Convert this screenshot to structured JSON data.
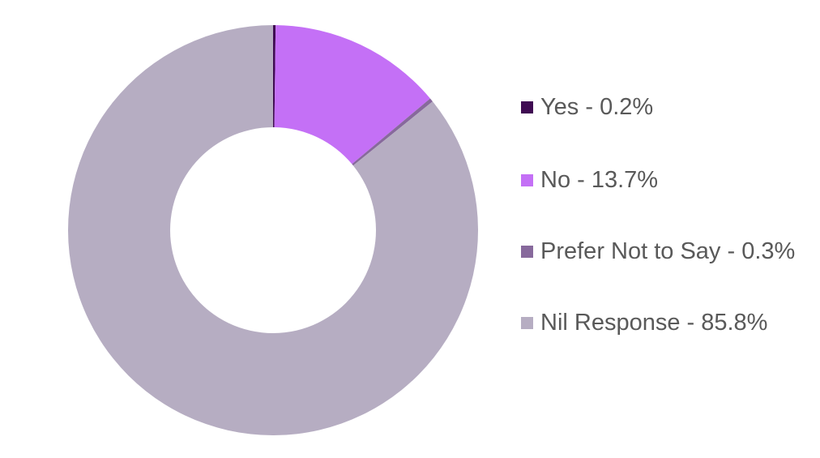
{
  "chart_data": {
    "type": "donut",
    "categories": [
      "Yes - 0.2%",
      "No - 13.7%",
      "Prefer Not to Say - 0.3%",
      "Nil Response - 85.8%"
    ],
    "values": [
      0.2,
      13.7,
      0.3,
      85.8
    ],
    "colors": [
      "#3f0b52",
      "#c470f6",
      "#87699c",
      "#b6adc2"
    ],
    "legend": "right"
  }
}
